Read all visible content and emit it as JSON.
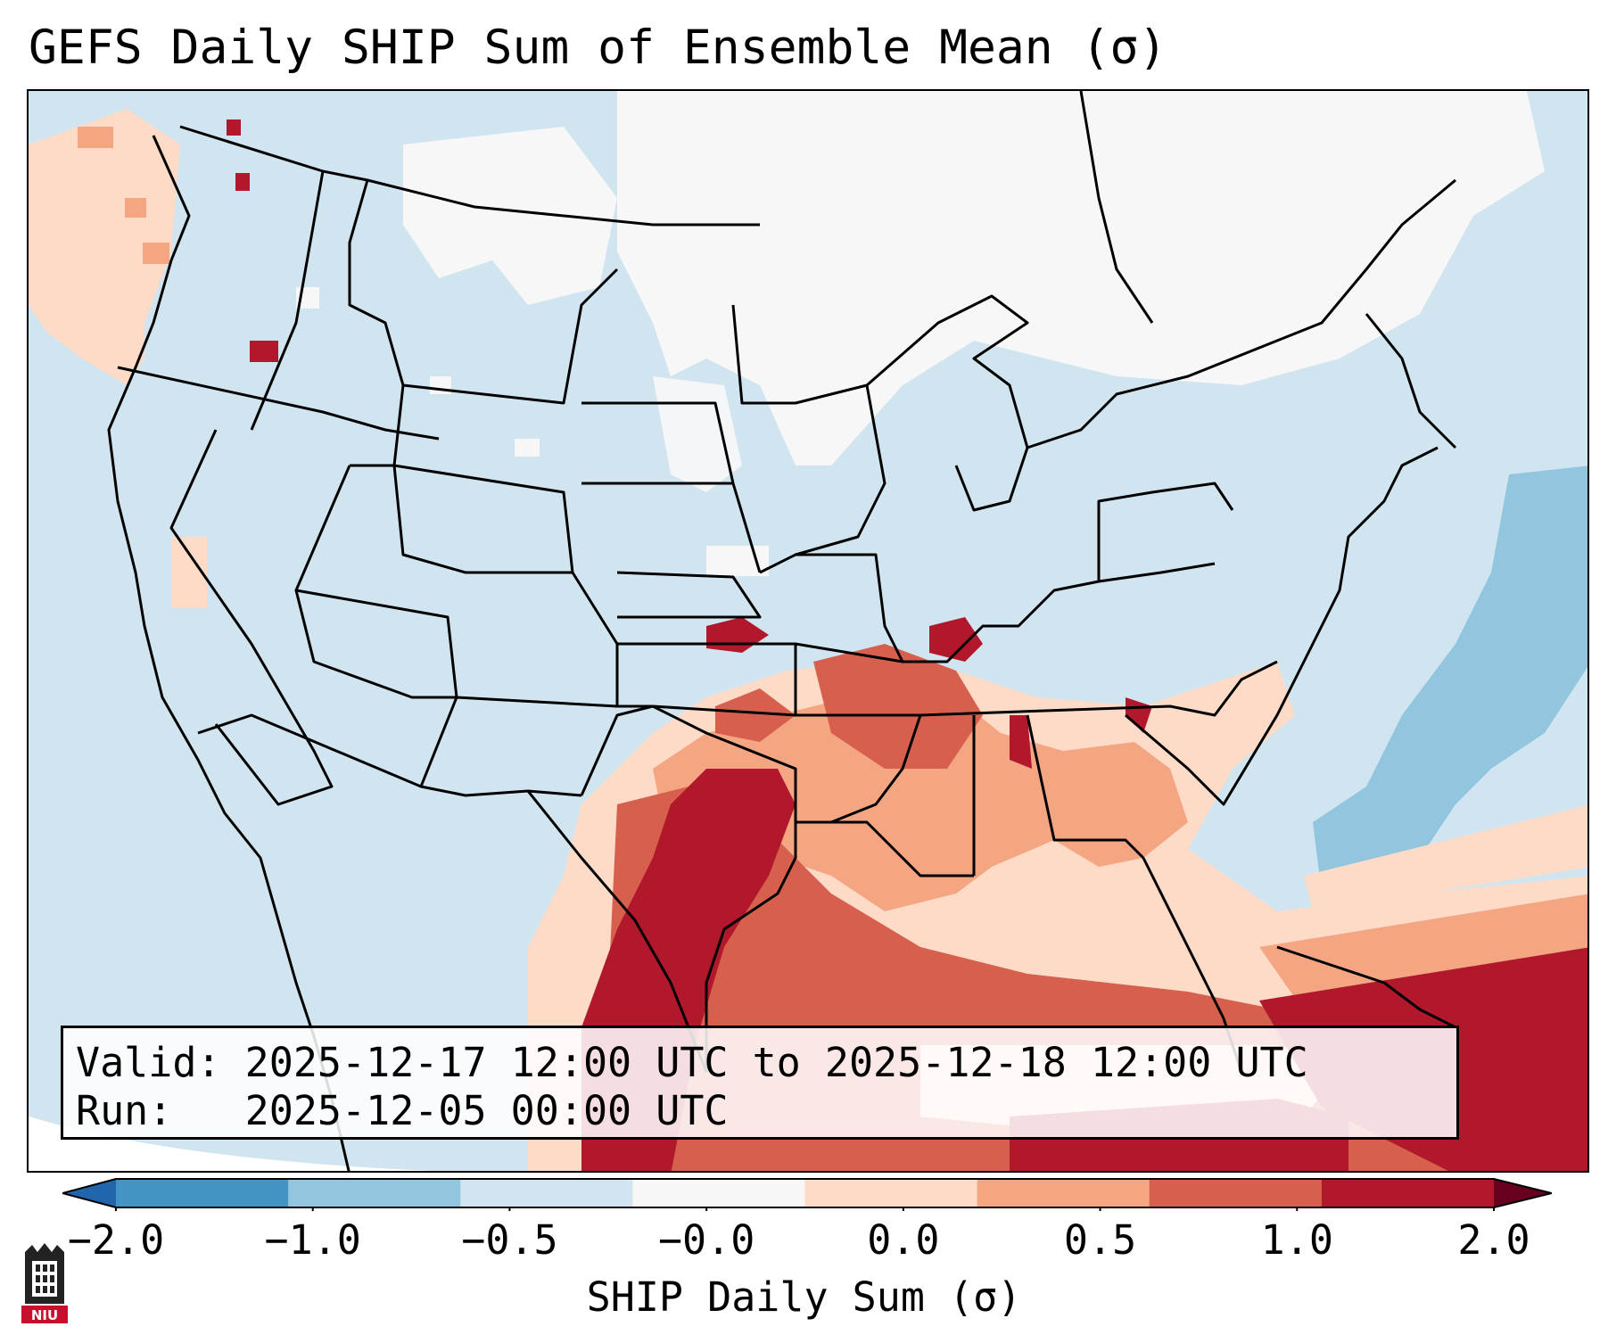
{
  "title": "GEFS Daily SHIP Sum of Ensemble Mean (σ)",
  "info": {
    "valid_label": "Valid:",
    "valid_value": "2025-12-17 12:00 UTC to 2025-12-18 12:00 UTC",
    "run_label": "Run:",
    "run_value": "2025-12-05 00:00 UTC"
  },
  "colorbar": {
    "label": "SHIP Daily Sum (σ)",
    "ticks": [
      "−2.0",
      "−1.0",
      "−0.5",
      "−0.0",
      "0.0",
      "0.5",
      "1.0",
      "2.0"
    ],
    "bins": [
      "#4393c3",
      "#92c5de",
      "#d1e5f0",
      "#f7f7f7",
      "#fddbc7",
      "#f4a582",
      "#d6604d",
      "#b2182b"
    ],
    "extend": "both"
  },
  "logo": {
    "text": "NIU"
  }
}
